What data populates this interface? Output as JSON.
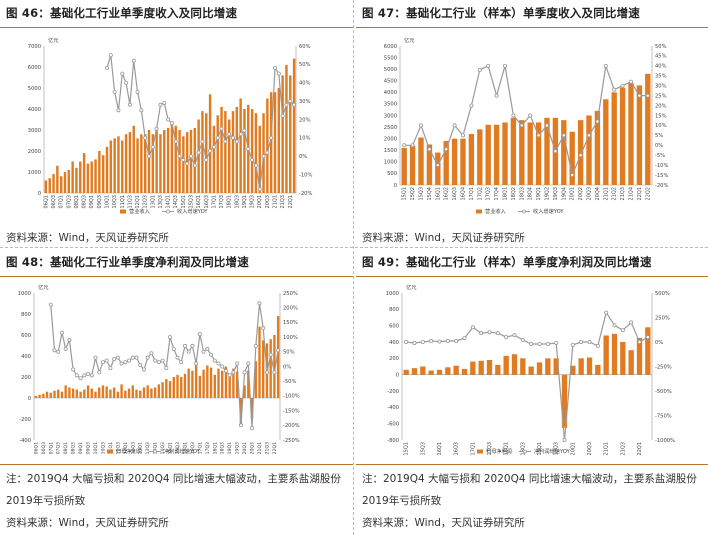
{
  "fig46": {
    "title": "图 46：基础化工行业单季度收入及同比增速",
    "source": "资料来源：Wind，天风证券研究所"
  },
  "fig47": {
    "title": "图 47：基础化工行业（样本）单季度收入及同比增速",
    "source": "资料来源：Wind，天风证券研究所"
  },
  "fig48": {
    "title": "图 48：基础化工行业单季度净利润及同比增速",
    "note": "注：2019Q4 大幅亏损和 2020Q4 同比增速大幅波动，主要系盐湖股份 2019年亏损所致",
    "source": "资料来源：Wind，天风证券研究所"
  },
  "fig49": {
    "title": "图 49：基础化工行业（样本）单季度净利润及同比增速",
    "note": "注：2019Q4 大幅亏损和 2020Q4 同比增速大幅波动，主要系盐湖股份 2019年亏损所致",
    "source": "资料来源：Wind，天风证券研究所"
  },
  "colors": {
    "bar": "#e07b22",
    "line": "#9a9a9a",
    "border": "#b5712c"
  },
  "chart_data": [
    {
      "id": "fig46",
      "type": "bar",
      "unit_label": "亿元",
      "ylim": [
        0,
        7000
      ],
      "yticks": [
        0,
        1000,
        2000,
        3000,
        4000,
        5000,
        6000,
        7000
      ],
      "y2lim": [
        -20,
        60
      ],
      "y2ticks": [
        "-20%",
        "-10%",
        "0%",
        "10%",
        "20%",
        "30%",
        "40%",
        "50%",
        "60%"
      ],
      "legend": [
        "营业收入",
        "收入增速YOY"
      ],
      "categories": [
        "06Q1",
        "06Q2",
        "06Q3",
        "06Q4",
        "07Q1",
        "07Q2",
        "07Q3",
        "07Q4",
        "08Q1",
        "08Q2",
        "08Q3",
        "08Q4",
        "09Q1",
        "09Q2",
        "09Q3",
        "09Q4",
        "10Q1",
        "10Q2",
        "10Q3",
        "10Q4",
        "11Q1",
        "11Q2",
        "11Q3",
        "11Q4",
        "12Q1",
        "12Q2",
        "12Q3",
        "12Q4",
        "13Q1",
        "13Q2",
        "13Q3",
        "13Q4",
        "14Q1",
        "14Q2",
        "14Q3",
        "14Q4",
        "15Q1",
        "15Q2",
        "15Q3",
        "15Q4",
        "16Q1",
        "16Q2",
        "16Q3",
        "16Q4",
        "17Q1",
        "17Q2",
        "17Q3",
        "17Q4",
        "18Q1",
        "18Q2",
        "18Q3",
        "18Q4",
        "19Q1",
        "19Q2",
        "19Q3",
        "19Q4",
        "20Q1",
        "20Q2",
        "20Q3",
        "20Q4",
        "21Q1",
        "21Q2",
        "21Q3",
        "21Q4",
        "22Q1",
        "22Q2"
      ],
      "tick_labels": [
        "06Q1",
        "06Q3",
        "07Q1",
        "07Q3",
        "08Q1",
        "08Q3",
        "09Q1",
        "09Q3",
        "10Q1",
        "10Q3",
        "11Q1",
        "11Q3",
        "12Q1",
        "12Q3",
        "13Q1",
        "13Q3",
        "14Q1",
        "14Q3",
        "15Q1",
        "15Q3",
        "16Q1",
        "16Q3",
        "17Q1",
        "17Q3",
        "18Q1",
        "18Q3",
        "19Q1",
        "19Q3",
        "20Q1",
        "20Q3",
        "21Q1",
        "21Q3",
        "22Q1"
      ],
      "series": [
        {
          "name": "营业收入",
          "axis": "left",
          "values": [
            600,
            700,
            900,
            1300,
            800,
            1000,
            1100,
            1500,
            1200,
            1500,
            1900,
            1400,
            1500,
            1600,
            2000,
            1800,
            2200,
            2500,
            2600,
            2700,
            2500,
            2800,
            2900,
            3200,
            2600,
            2800,
            2800,
            3000,
            2800,
            3000,
            2800,
            3000,
            3100,
            3300,
            3200,
            3000,
            2700,
            2900,
            3000,
            3100,
            3500,
            3900,
            3800,
            4700,
            3200,
            3700,
            4100,
            3900,
            3500,
            3900,
            4100,
            4500,
            4000,
            4200,
            4000,
            3800,
            3200,
            3800,
            4500,
            4800,
            4800,
            5000,
            5600,
            6100,
            5600,
            6400
          ]
        },
        {
          "name": "收入增速YOY",
          "axis": "right",
          "values": [
            null,
            null,
            null,
            null,
            null,
            null,
            null,
            null,
            null,
            null,
            null,
            null,
            null,
            null,
            null,
            null,
            48,
            55,
            35,
            25,
            45,
            40,
            28,
            52,
            35,
            25,
            10,
            0,
            5,
            15,
            28,
            29,
            20,
            18,
            8,
            0,
            -2,
            -4,
            0,
            -5,
            2,
            8,
            -2,
            3,
            5,
            10,
            15,
            8,
            12,
            10,
            8,
            12,
            14,
            4,
            -2,
            -5,
            -18,
            0,
            2,
            10,
            48,
            45,
            22,
            28,
            30,
            28
          ]
        }
      ]
    },
    {
      "id": "fig47",
      "type": "bar",
      "unit_label": "亿元",
      "ylim": [
        0,
        6000
      ],
      "yticks": [
        0,
        500,
        1000,
        1500,
        2000,
        2500,
        3000,
        3500,
        4000,
        4500,
        5000,
        5500,
        6000
      ],
      "y2lim": [
        -20,
        50
      ],
      "y2ticks": [
        "-20%",
        "-15%",
        "-10%",
        "-5%",
        "0%",
        "5%",
        "10%",
        "15%",
        "20%",
        "25%",
        "30%",
        "35%",
        "40%",
        "45%",
        "50%"
      ],
      "legend": [
        "营业收入",
        "收入增速YOY"
      ],
      "categories": [
        "15Q1",
        "15Q2",
        "15Q3",
        "15Q4",
        "16Q1",
        "16Q2",
        "16Q3",
        "16Q4",
        "17Q1",
        "17Q2",
        "17Q3",
        "17Q4",
        "18Q1",
        "18Q2",
        "18Q3",
        "18Q4",
        "19Q1",
        "19Q2",
        "19Q3",
        "19Q4",
        "20Q1",
        "20Q2",
        "20Q3",
        "20Q4",
        "21Q1",
        "21Q2",
        "21Q3",
        "21Q4",
        "22Q1",
        "22Q2"
      ],
      "tick_labels": [
        "15Q1",
        "15Q2",
        "15Q3",
        "15Q4",
        "16Q1",
        "16Q2",
        "16Q3",
        "16Q4",
        "17Q1",
        "17Q2",
        "17Q3",
        "17Q4",
        "18Q1",
        "18Q2",
        "18Q3",
        "18Q4",
        "19Q1",
        "19Q2",
        "19Q3",
        "19Q4",
        "20Q1",
        "20Q2",
        "20Q3",
        "20Q4",
        "21Q1",
        "21Q2",
        "21Q3",
        "21Q4",
        "22Q1",
        "22Q2"
      ],
      "series": [
        {
          "name": "营业收入",
          "axis": "left",
          "values": [
            1600,
            1700,
            2050,
            1750,
            1400,
            1900,
            2000,
            2000,
            2200,
            2400,
            2600,
            2600,
            2700,
            2900,
            2800,
            2700,
            2700,
            2900,
            2900,
            2800,
            2300,
            2800,
            3000,
            3200,
            3700,
            4000,
            4200,
            4400,
            4300,
            4800
          ]
        },
        {
          "name": "收入增速YOY",
          "axis": "right",
          "values": [
            0,
            0,
            10,
            -2,
            -10,
            -2,
            10,
            5,
            20,
            38,
            40,
            25,
            40,
            15,
            10,
            15,
            5,
            10,
            -3,
            5,
            -15,
            -5,
            5,
            12,
            40,
            28,
            30,
            32,
            25,
            25
          ]
        }
      ]
    },
    {
      "id": "fig48",
      "type": "bar",
      "unit_label": "亿元",
      "ylim": [
        -400,
        1000
      ],
      "yticks": [
        -400,
        -200,
        0,
        200,
        400,
        600,
        800,
        1000
      ],
      "y2lim": [
        -250,
        250
      ],
      "y2ticks": [
        "-250%",
        "-200%",
        "-150%",
        "-100%",
        "-50%",
        "0%",
        "50%",
        "100%",
        "150%",
        "200%",
        "250%"
      ],
      "legend": [
        "归母净利润",
        "净利润增速YOY"
      ],
      "categories": [
        "06Q1",
        "06Q2",
        "06Q3",
        "06Q4",
        "07Q1",
        "07Q2",
        "07Q3",
        "07Q4",
        "08Q1",
        "08Q2",
        "08Q3",
        "08Q4",
        "09Q1",
        "09Q2",
        "09Q3",
        "09Q4",
        "10Q1",
        "10Q2",
        "10Q3",
        "10Q4",
        "11Q1",
        "11Q2",
        "11Q3",
        "11Q4",
        "12Q1",
        "12Q2",
        "12Q3",
        "12Q4",
        "13Q1",
        "13Q2",
        "13Q3",
        "13Q4",
        "14Q1",
        "14Q2",
        "14Q3",
        "14Q4",
        "15Q1",
        "15Q2",
        "15Q3",
        "15Q4",
        "16Q1",
        "16Q2",
        "16Q3",
        "16Q4",
        "17Q1",
        "17Q2",
        "17Q3",
        "17Q4",
        "18Q1",
        "18Q2",
        "18Q3",
        "18Q4",
        "19Q1",
        "19Q2",
        "19Q3",
        "19Q4",
        "20Q1",
        "20Q2",
        "20Q3",
        "20Q4",
        "21Q1",
        "21Q2",
        "21Q3",
        "21Q4",
        "22Q1",
        "22Q2"
      ],
      "tick_labels": [
        "06Q1",
        "06Q3",
        "07Q1",
        "07Q3",
        "08Q1",
        "08Q3",
        "09Q1",
        "09Q3",
        "10Q1",
        "10Q3",
        "11Q1",
        "11Q3",
        "12Q1",
        "12Q3",
        "13Q1",
        "13Q3",
        "14Q1",
        "14Q3",
        "15Q1",
        "15Q3",
        "16Q1",
        "16Q3",
        "17Q1",
        "17Q3",
        "18Q1",
        "18Q3",
        "19Q1",
        "19Q3",
        "20Q1",
        "20Q3",
        "21Q1",
        "21Q3",
        "22Q1"
      ],
      "series": [
        {
          "name": "归母净利润",
          "axis": "left",
          "values": [
            20,
            30,
            40,
            60,
            50,
            70,
            80,
            60,
            120,
            100,
            90,
            80,
            60,
            80,
            120,
            90,
            60,
            100,
            120,
            110,
            80,
            100,
            60,
            130,
            70,
            90,
            120,
            80,
            70,
            100,
            120,
            90,
            100,
            130,
            150,
            180,
            160,
            200,
            220,
            200,
            230,
            280,
            260,
            340,
            210,
            270,
            310,
            290,
            220,
            280,
            260,
            300,
            230,
            280,
            250,
            -250,
            120,
            260,
            -200,
            350,
            680,
            550,
            520,
            560,
            600,
            780
          ]
        },
        {
          "name": "净利润增速YOY",
          "axis": "right",
          "values": [
            null,
            null,
            null,
            null,
            210,
            55,
            50,
            115,
            60,
            90,
            -10,
            -30,
            -40,
            -30,
            -25,
            -30,
            30,
            -20,
            15,
            20,
            -5,
            25,
            30,
            10,
            15,
            20,
            30,
            30,
            5,
            -10,
            30,
            45,
            20,
            15,
            20,
            -5,
            100,
            60,
            30,
            15,
            70,
            50,
            70,
            10,
            110,
            50,
            60,
            40,
            20,
            10,
            0,
            -15,
            -30,
            -20,
            10,
            -200,
            -20,
            10,
            -210,
            70,
            215,
            130,
            -20,
            40,
            -20,
            55
          ]
        }
      ]
    },
    {
      "id": "fig49",
      "type": "bar",
      "unit_label": "亿元",
      "ylim": [
        -800,
        1000
      ],
      "yticks": [
        -800,
        -600,
        -400,
        -200,
        0,
        200,
        400,
        600,
        800,
        1000
      ],
      "y2lim": [
        -1000,
        500
      ],
      "y2ticks": [
        "-1000%",
        "-750%",
        "-500%",
        "-250%",
        "0%",
        "250%",
        "500%"
      ],
      "legend": [
        "归母净利润",
        "净利润增速YOY"
      ],
      "categories": [
        "15Q1",
        "15Q2",
        "15Q3",
        "15Q4",
        "16Q1",
        "16Q2",
        "16Q3",
        "16Q4",
        "17Q1",
        "17Q2",
        "17Q3",
        "17Q4",
        "18Q1",
        "18Q2",
        "18Q3",
        "18Q4",
        "19Q1",
        "19Q2",
        "19Q3",
        "19Q4",
        "20Q1",
        "20Q2",
        "20Q3",
        "20Q4",
        "21Q1",
        "21Q2",
        "21Q3",
        "21Q4",
        "22Q1",
        "22Q2"
      ],
      "tick_labels": [
        "15Q1",
        "15Q3",
        "16Q1",
        "16Q3",
        "17Q1",
        "17Q3",
        "18Q1",
        "18Q3",
        "19Q1",
        "19Q3",
        "20Q1",
        "20Q3",
        "21Q1",
        "21Q3",
        "22Q1"
      ],
      "series": [
        {
          "name": "归母净利润",
          "axis": "left",
          "values": [
            60,
            80,
            100,
            50,
            60,
            90,
            110,
            70,
            160,
            170,
            180,
            120,
            230,
            250,
            200,
            100,
            150,
            200,
            200,
            -650,
            110,
            200,
            210,
            120,
            480,
            500,
            400,
            300,
            450,
            580
          ]
        },
        {
          "name": "净利润增速YOY",
          "axis": "right",
          "values": [
            0,
            -10,
            0,
            10,
            5,
            10,
            10,
            40,
            150,
            90,
            100,
            90,
            50,
            70,
            20,
            -20,
            -20,
            -20,
            -10,
            -1000,
            -30,
            0,
            0,
            -40,
            300,
            170,
            120,
            200,
            0,
            50
          ]
        }
      ]
    }
  ]
}
